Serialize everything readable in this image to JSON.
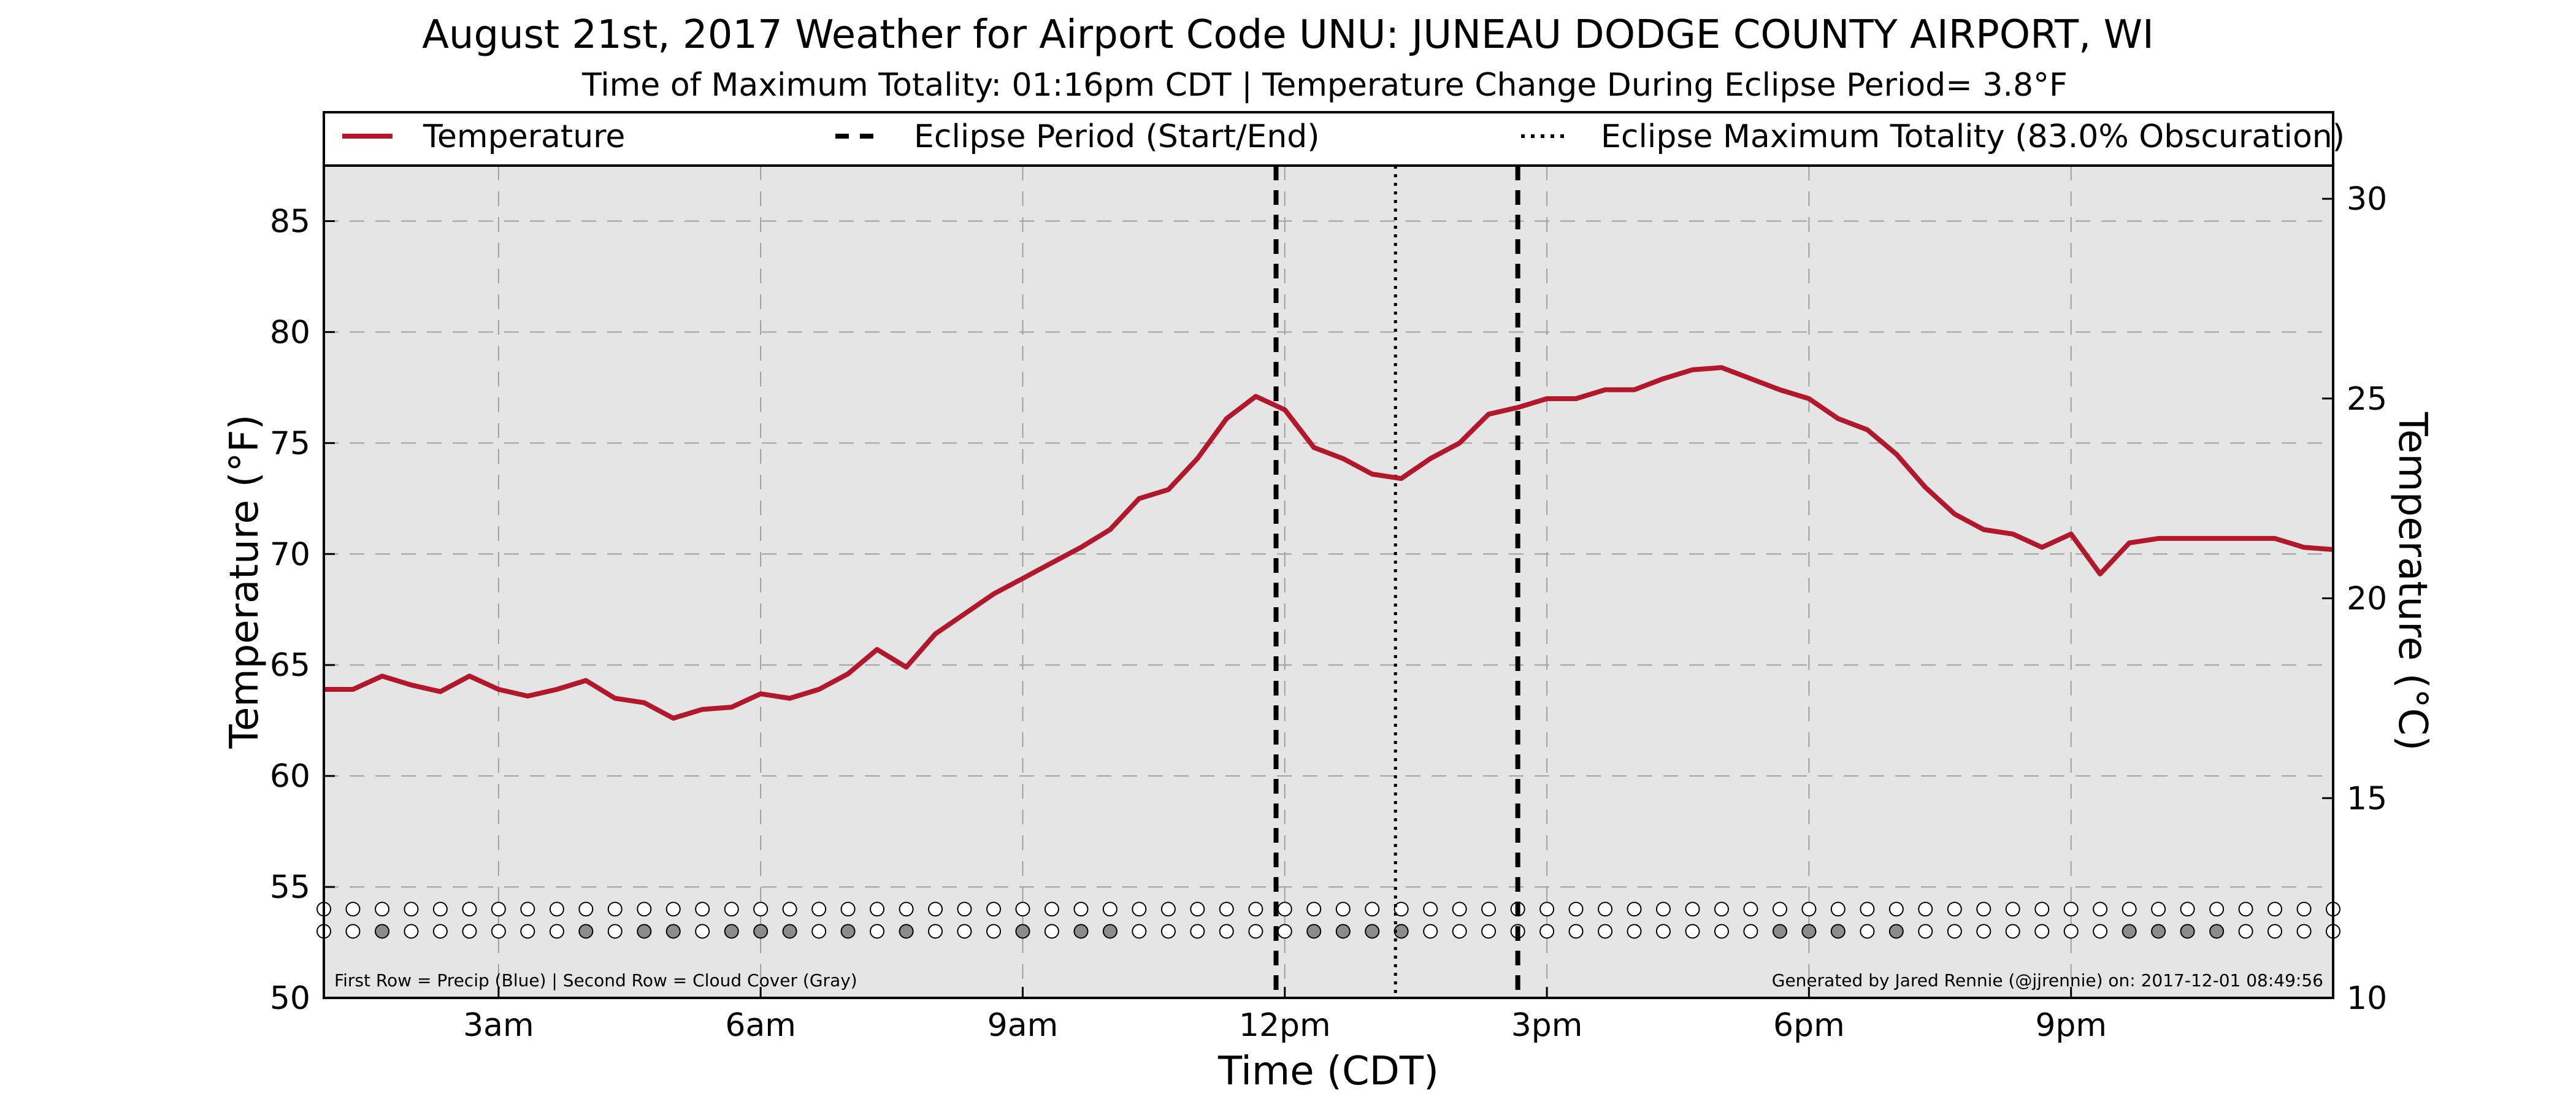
{
  "chart_data": {
    "type": "line",
    "title": "August 21st, 2017 Weather for Airport Code UNU: JUNEAU DODGE COUNTY AIRPORT, WI",
    "subtitle": "Time of Maximum Totality: 01:16pm CDT | Temperature Change During Eclipse Period= 3.8°F",
    "xlabel": "Time (CDT)",
    "ylabel": "Temperature (°F)",
    "ylabel_right": "Temperature (°C)",
    "x_unit": "hours since midnight CDT",
    "xlim": [
      1.0,
      24.0
    ],
    "ylim": [
      50,
      87.5
    ],
    "ylim_right_celsius": [
      10,
      30.83
    ],
    "x_ticks": [
      {
        "x": 3,
        "label": "3am"
      },
      {
        "x": 6,
        "label": "6am"
      },
      {
        "x": 9,
        "label": "9am"
      },
      {
        "x": 12,
        "label": "12pm"
      },
      {
        "x": 15,
        "label": "3pm"
      },
      {
        "x": 18,
        "label": "6pm"
      },
      {
        "x": 21,
        "label": "9pm"
      }
    ],
    "y_ticks": [
      50,
      55,
      60,
      65,
      70,
      75,
      80,
      85
    ],
    "y_ticks_right": [
      10,
      15,
      20,
      25,
      30
    ],
    "grid": true,
    "legend": {
      "placement": "top (boxed, above plot)",
      "entries": [
        {
          "label": "Temperature",
          "style": "solid",
          "color": "#b2182b"
        },
        {
          "label": "Eclipse Period (Start/End)",
          "style": "dashed",
          "color": "#000000"
        },
        {
          "label": "Eclipse Maximum Totality (83.0% Obscuration)",
          "style": "dotted",
          "color": "#000000"
        }
      ]
    },
    "series": [
      {
        "name": "Temperature",
        "color": "#b2182b",
        "x": [
          1.0,
          1.333,
          1.667,
          2.0,
          2.333,
          2.667,
          3.0,
          3.333,
          3.667,
          4.0,
          4.333,
          4.667,
          5.0,
          5.333,
          5.667,
          6.0,
          6.333,
          6.667,
          7.0,
          7.333,
          7.667,
          8.0,
          8.333,
          8.667,
          9.0,
          9.333,
          9.667,
          10.0,
          10.333,
          10.667,
          11.0,
          11.333,
          11.667,
          12.0,
          12.333,
          12.667,
          13.0,
          13.333,
          13.667,
          14.0,
          14.333,
          14.667,
          15.0,
          15.333,
          15.667,
          16.0,
          16.333,
          16.667,
          17.0,
          17.333,
          17.667,
          18.0,
          18.333,
          18.667,
          19.0,
          19.333,
          19.667,
          20.0,
          20.333,
          20.667,
          21.0,
          21.333,
          21.667,
          22.0,
          22.333,
          22.667,
          23.0,
          23.333,
          23.667,
          24.0
        ],
        "values": [
          63.9,
          63.9,
          64.5,
          64.1,
          63.8,
          64.5,
          63.9,
          63.6,
          63.9,
          64.3,
          63.5,
          63.3,
          62.6,
          63.0,
          63.1,
          63.7,
          63.5,
          63.9,
          64.6,
          65.7,
          64.9,
          66.4,
          67.3,
          68.2,
          68.9,
          69.6,
          70.3,
          71.1,
          72.5,
          72.9,
          74.3,
          76.1,
          77.1,
          76.5,
          74.8,
          74.3,
          73.6,
          73.4,
          74.3,
          75.0,
          76.3,
          76.6,
          77.0,
          77.0,
          77.4,
          77.4,
          77.9,
          78.3,
          78.4,
          77.9,
          77.4,
          77.0,
          76.1,
          75.6,
          74.5,
          73.0,
          71.8,
          71.1,
          70.9,
          70.3,
          70.9,
          69.1,
          70.5,
          70.7,
          70.7,
          70.7,
          70.7,
          70.7,
          70.3,
          70.2
        ]
      }
    ],
    "eclipse": {
      "start_time": 11.9,
      "end_time": 14.667,
      "max_totality_time": 13.267,
      "start_end_style": "dashed",
      "max_style": "dotted"
    },
    "dot_rows": {
      "note": "First Row = Precip (Blue) | Second Row = Cloud Cover (Gray)",
      "precip_y": 54.0,
      "cloud_y": 53.0,
      "x": [
        1.0,
        1.333,
        1.667,
        2.0,
        2.333,
        2.667,
        3.0,
        3.333,
        3.667,
        4.0,
        4.333,
        4.667,
        5.0,
        5.333,
        5.667,
        6.0,
        6.333,
        6.667,
        7.0,
        7.333,
        7.667,
        8.0,
        8.333,
        8.667,
        9.0,
        9.333,
        9.667,
        10.0,
        10.333,
        10.667,
        11.0,
        11.333,
        11.667,
        12.0,
        12.333,
        12.667,
        13.0,
        13.333,
        13.667,
        14.0,
        14.333,
        14.667,
        15.0,
        15.333,
        15.667,
        16.0,
        16.333,
        16.667,
        17.0,
        17.333,
        17.667,
        18.0,
        18.333,
        18.667,
        19.0,
        19.333,
        19.667,
        20.0,
        20.333,
        20.667,
        21.0,
        21.333,
        21.667,
        22.0,
        22.333,
        22.667,
        23.0,
        23.333,
        23.667,
        24.0
      ],
      "precip": [
        0,
        0,
        0,
        0,
        0,
        0,
        0,
        0,
        0,
        0,
        0,
        0,
        0,
        0,
        0,
        0,
        0,
        0,
        0,
        0,
        0,
        0,
        0,
        0,
        0,
        0,
        0,
        0,
        0,
        0,
        0,
        0,
        0,
        0,
        0,
        0,
        0,
        0,
        0,
        0,
        0,
        0,
        0,
        0,
        0,
        0,
        0,
        0,
        0,
        0,
        0,
        0,
        0,
        0,
        0,
        0,
        0,
        0,
        0,
        0,
        0,
        0,
        0,
        0,
        0,
        0,
        0,
        0,
        0,
        0
      ],
      "cloud": [
        0,
        0,
        1,
        0,
        0,
        0,
        0,
        0,
        0,
        1,
        0,
        1,
        1,
        0,
        1,
        1,
        1,
        0,
        1,
        0,
        1,
        0,
        0,
        0,
        1,
        0,
        1,
        1,
        0,
        0,
        0,
        0,
        0,
        0,
        1,
        1,
        1,
        1,
        0,
        0,
        0,
        0,
        0,
        0,
        0,
        0,
        0,
        0,
        0,
        0,
        1,
        1,
        1,
        0,
        1,
        0,
        0,
        0,
        0,
        0,
        0,
        0,
        1,
        1,
        1,
        1,
        0,
        0,
        0,
        0
      ],
      "colors": {
        "empty": "#ffffff",
        "precip": "#4a7bd0",
        "cloud": "#8c8c8c"
      }
    },
    "footer_left": "First Row = Precip (Blue) | Second Row = Cloud Cover (Gray)",
    "footer_right": "Generated by Jared Rennie (@jjrennie) on: 2017-12-01 08:49:56",
    "colors": {
      "plot_background": "#e5e5e5",
      "temperature": "#b2182b",
      "grid": "#a0a0a0"
    }
  }
}
